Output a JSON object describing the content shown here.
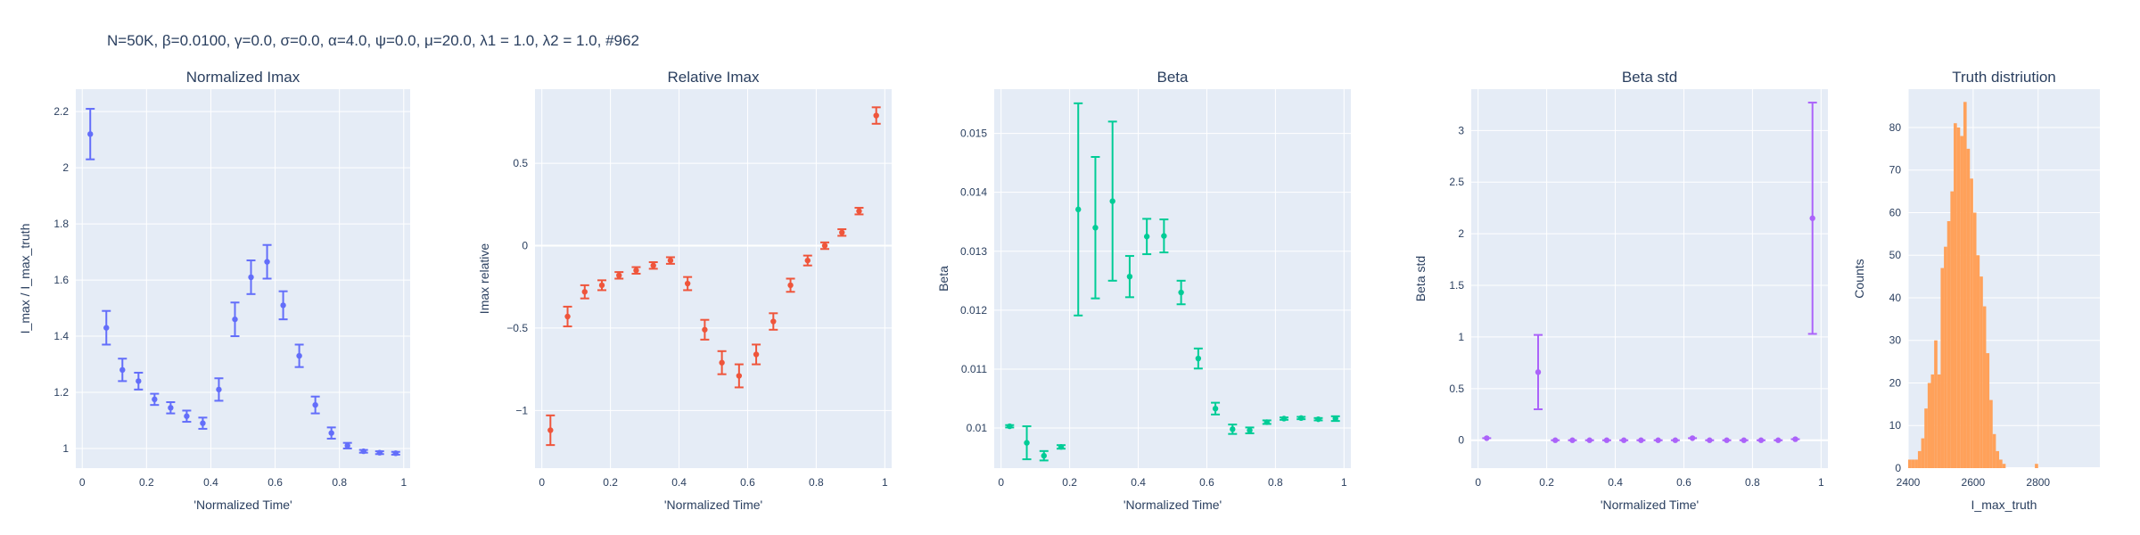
{
  "suptitle": "N=50K, β=0.0100, γ=0.0, σ=0.0,  α=4.0, ψ=0.0, μ=20.0, λ1 = 1.0, λ2 = 1.0, #962",
  "chart_data": [
    {
      "type": "scatter",
      "title": "Normalized Imax",
      "xlabel": "'Normalized Time'",
      "ylabel": "I_max / I_max_truth",
      "color": "#636efa",
      "xlim": [
        -0.02,
        1.02
      ],
      "ylim": [
        0.93,
        2.28
      ],
      "xticks": [
        0,
        0.2,
        0.4,
        0.6,
        0.8,
        1
      ],
      "xtick_labels": [
        "0",
        "0.2",
        "0.4",
        "0.6",
        "0.8",
        "1"
      ],
      "yticks": [
        1,
        1.2,
        1.4,
        1.6,
        1.8,
        2,
        2.2
      ],
      "ytick_labels": [
        "1",
        "1.2",
        "1.4",
        "1.6",
        "1.8",
        "2",
        "2.2"
      ],
      "x": [
        0.025,
        0.075,
        0.125,
        0.175,
        0.225,
        0.275,
        0.325,
        0.375,
        0.425,
        0.475,
        0.525,
        0.575,
        0.625,
        0.675,
        0.725,
        0.775,
        0.825,
        0.875,
        0.925,
        0.975
      ],
      "y": [
        2.12,
        1.43,
        1.28,
        1.24,
        1.175,
        1.145,
        1.115,
        1.09,
        1.21,
        1.46,
        1.61,
        1.665,
        1.51,
        1.33,
        1.155,
        1.055,
        1.01,
        0.99,
        0.985,
        0.983
      ],
      "err": [
        0.09,
        0.06,
        0.04,
        0.03,
        0.02,
        0.02,
        0.02,
        0.02,
        0.04,
        0.06,
        0.06,
        0.06,
        0.05,
        0.04,
        0.03,
        0.02,
        0.01,
        0.005,
        0.005,
        0.005
      ]
    },
    {
      "type": "scatter",
      "title": "Relative Imax",
      "xlabel": "'Normalized Time'",
      "ylabel": "Imax relative",
      "color": "#ef553b",
      "xlim": [
        -0.02,
        1.02
      ],
      "ylim": [
        -1.35,
        0.95
      ],
      "xticks": [
        0,
        0.2,
        0.4,
        0.6,
        0.8,
        1
      ],
      "xtick_labels": [
        "0",
        "0.2",
        "0.4",
        "0.6",
        "0.8",
        "1"
      ],
      "yticks": [
        -1,
        -0.5,
        0,
        0.5
      ],
      "ytick_labels": [
        "−1",
        "−0.5",
        "0",
        "0.5"
      ],
      "x": [
        0.025,
        0.075,
        0.125,
        0.175,
        0.225,
        0.275,
        0.325,
        0.375,
        0.425,
        0.475,
        0.525,
        0.575,
        0.625,
        0.675,
        0.725,
        0.775,
        0.825,
        0.875,
        0.925,
        0.975
      ],
      "y": [
        -1.12,
        -0.43,
        -0.28,
        -0.24,
        -0.18,
        -0.15,
        -0.12,
        -0.09,
        -0.23,
        -0.51,
        -0.71,
        -0.79,
        -0.66,
        -0.46,
        -0.24,
        -0.09,
        0.0,
        0.08,
        0.21,
        0.79
      ],
      "err": [
        0.09,
        0.06,
        0.04,
        0.03,
        0.02,
        0.02,
        0.02,
        0.02,
        0.04,
        0.06,
        0.07,
        0.07,
        0.06,
        0.05,
        0.04,
        0.03,
        0.02,
        0.02,
        0.02,
        0.05
      ]
    },
    {
      "type": "scatter",
      "title": "Beta",
      "xlabel": "'Normalized Time'",
      "ylabel": "Beta",
      "color": "#00cc96",
      "xlim": [
        -0.02,
        1.02
      ],
      "ylim": [
        0.00932,
        0.01575
      ],
      "xticks": [
        0,
        0.2,
        0.4,
        0.6,
        0.8,
        1
      ],
      "xtick_labels": [
        "0",
        "0.2",
        "0.4",
        "0.6",
        "0.8",
        "1"
      ],
      "yticks": [
        0.01,
        0.011,
        0.012,
        0.013,
        0.014,
        0.015
      ],
      "ytick_labels": [
        "0.01",
        "0.011",
        "0.012",
        "0.013",
        "0.014",
        "0.015"
      ],
      "x": [
        0.025,
        0.075,
        0.125,
        0.175,
        0.225,
        0.275,
        0.325,
        0.375,
        0.425,
        0.475,
        0.525,
        0.575,
        0.625,
        0.675,
        0.725,
        0.775,
        0.825,
        0.875,
        0.925,
        0.975
      ],
      "y": [
        0.01003,
        0.00975,
        0.00953,
        0.00968,
        0.01371,
        0.0134,
        0.01385,
        0.01257,
        0.01325,
        0.01326,
        0.0123,
        0.01118,
        0.01033,
        0.00998,
        0.00996,
        0.0101,
        0.01016,
        0.01017,
        0.01015,
        0.01016
      ],
      "err": [
        2e-05,
        0.00028,
        8e-05,
        3e-05,
        0.0018,
        0.0012,
        0.00135,
        0.00035,
        0.0003,
        0.00028,
        0.0002,
        0.00017,
        0.0001,
        8e-05,
        5e-05,
        3e-05,
        2e-05,
        2e-05,
        2e-05,
        4e-05
      ]
    },
    {
      "type": "scatter",
      "title": "Beta std",
      "xlabel": "'Normalized Time'",
      "ylabel": "Beta std",
      "color": "#ab63fa",
      "xlim": [
        -0.02,
        1.02
      ],
      "ylim": [
        -0.27,
        3.4
      ],
      "xticks": [
        0,
        0.2,
        0.4,
        0.6,
        0.8,
        1
      ],
      "xtick_labels": [
        "0",
        "0.2",
        "0.4",
        "0.6",
        "0.8",
        "1"
      ],
      "yticks": [
        0,
        0.5,
        1,
        1.5,
        2,
        2.5,
        3
      ],
      "ytick_labels": [
        "0",
        "0.5",
        "1",
        "1.5",
        "2",
        "2.5",
        "3"
      ],
      "x": [
        0.025,
        0.175,
        0.225,
        0.275,
        0.325,
        0.375,
        0.425,
        0.475,
        0.525,
        0.575,
        0.625,
        0.675,
        0.725,
        0.775,
        0.825,
        0.875,
        0.925,
        0.975
      ],
      "y": [
        0.02,
        0.66,
        0.0,
        0.0,
        0.0,
        0.0,
        0.0,
        0.0,
        0.0,
        0.0,
        0.02,
        0.0,
        0.0,
        0.0,
        0.0,
        0.0,
        0.01,
        2.15
      ],
      "err": [
        0.0,
        0.36,
        0.0,
        0.0,
        0.0,
        0.0,
        0.0,
        0.0,
        0.0,
        0.0,
        0.0,
        0.0,
        0.0,
        0.0,
        0.0,
        0.0,
        0.0,
        1.12
      ]
    },
    {
      "type": "histogram",
      "title": "Truth distriution",
      "xlabel": "I_max_truth",
      "ylabel": "Counts",
      "color": "#ffa15a",
      "xlim": [
        2400,
        2990
      ],
      "ylim": [
        0,
        89
      ],
      "xticks": [
        2400,
        2600,
        2800
      ],
      "xtick_labels": [
        "2400",
        "2600",
        "2800"
      ],
      "yticks": [
        0,
        10,
        20,
        30,
        40,
        50,
        60,
        70,
        80
      ],
      "ytick_labels": [
        "0",
        "10",
        "20",
        "30",
        "40",
        "50",
        "60",
        "70",
        "80"
      ],
      "bin_start": 2400,
      "bin_width": 10,
      "counts": [
        2,
        2,
        2,
        4,
        7,
        14,
        20,
        22,
        30,
        22,
        47,
        52,
        58,
        65,
        81,
        80,
        78,
        86,
        75,
        68,
        60,
        50,
        45,
        38,
        27,
        16,
        8,
        4,
        2,
        1,
        0,
        0,
        0,
        0,
        0,
        0,
        0,
        0,
        0,
        1
      ]
    }
  ]
}
